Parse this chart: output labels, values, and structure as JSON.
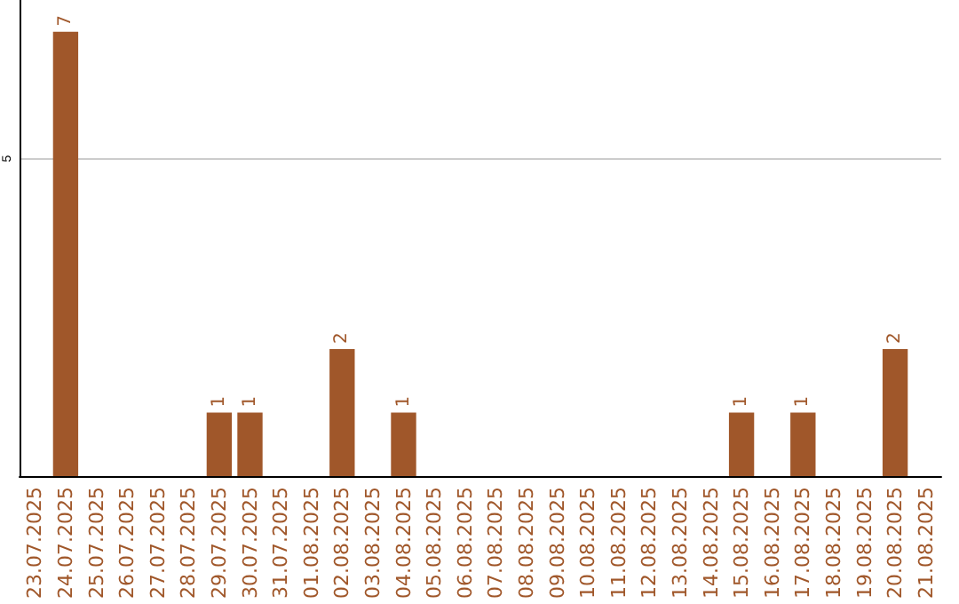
{
  "chart_data": {
    "type": "bar",
    "categories": [
      "23.07.2025",
      "24.07.2025",
      "25.07.2025",
      "26.07.2025",
      "27.07.2025",
      "28.07.2025",
      "29.07.2025",
      "30.07.2025",
      "31.07.2025",
      "01.08.2025",
      "02.08.2025",
      "03.08.2025",
      "04.08.2025",
      "05.08.2025",
      "06.08.2025",
      "07.08.2025",
      "08.08.2025",
      "09.08.2025",
      "10.08.2025",
      "11.08.2025",
      "12.08.2025",
      "13.08.2025",
      "14.08.2025",
      "15.08.2025",
      "16.08.2025",
      "17.08.2025",
      "18.08.2025",
      "19.08.2025",
      "20.08.2025",
      "21.08.2025"
    ],
    "values": [
      0,
      7,
      0,
      0,
      0,
      0,
      1,
      1,
      0,
      0,
      2,
      0,
      1,
      0,
      0,
      0,
      0,
      0,
      0,
      0,
      0,
      0,
      0,
      1,
      0,
      1,
      0,
      0,
      2,
      0
    ],
    "value_labels": [
      null,
      "7",
      null,
      null,
      null,
      null,
      "1",
      "1",
      null,
      null,
      "2",
      null,
      "1",
      null,
      null,
      null,
      null,
      null,
      null,
      null,
      null,
      null,
      null,
      "1",
      null,
      "1",
      null,
      null,
      "2",
      null
    ],
    "color": "#a0572a",
    "ylim": [
      0,
      7.5
    ],
    "yticks": [
      5
    ],
    "grid": "y"
  }
}
